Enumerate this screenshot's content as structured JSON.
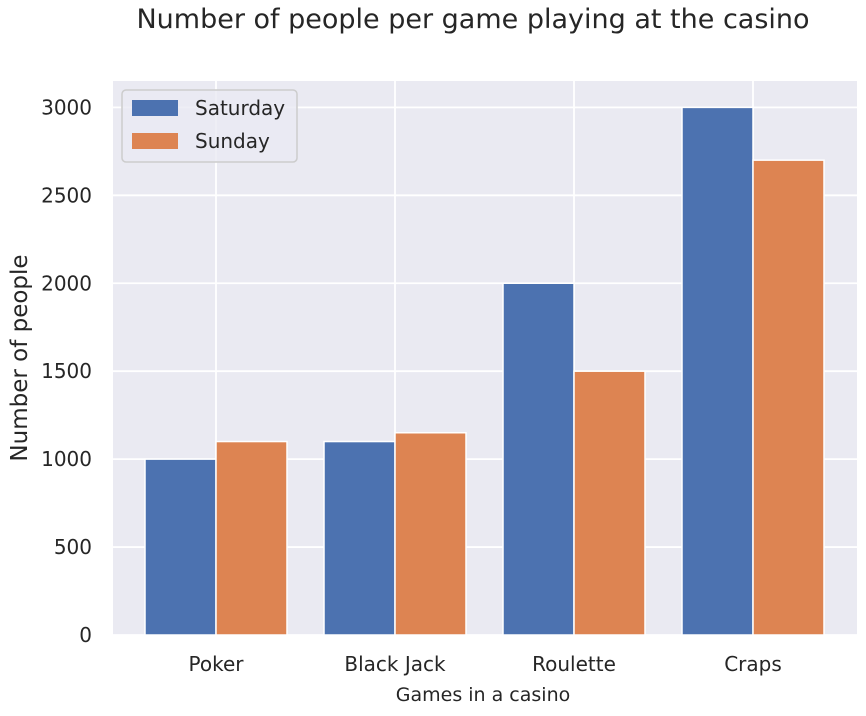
{
  "chart_data": {
    "type": "bar",
    "title": "Number of people per game playing at the casino",
    "xlabel": "Games in a casino",
    "ylabel": "Number of people",
    "categories": [
      "Poker",
      "Black Jack",
      "Roulette",
      "Craps"
    ],
    "series": [
      {
        "name": "Saturday",
        "values": [
          1000,
          1100,
          2000,
          3000
        ],
        "color": "#4c72b0"
      },
      {
        "name": "Sunday",
        "values": [
          1100,
          1150,
          1500,
          2700
        ],
        "color": "#dd8452"
      }
    ],
    "ylim": [
      0,
      3150
    ],
    "yticks": [
      0,
      500,
      1000,
      1500,
      2000,
      2500,
      3000
    ],
    "grid": true,
    "legend_position": "top-left",
    "background_color": "#eaeaf2",
    "grid_color": "#ffffff"
  }
}
